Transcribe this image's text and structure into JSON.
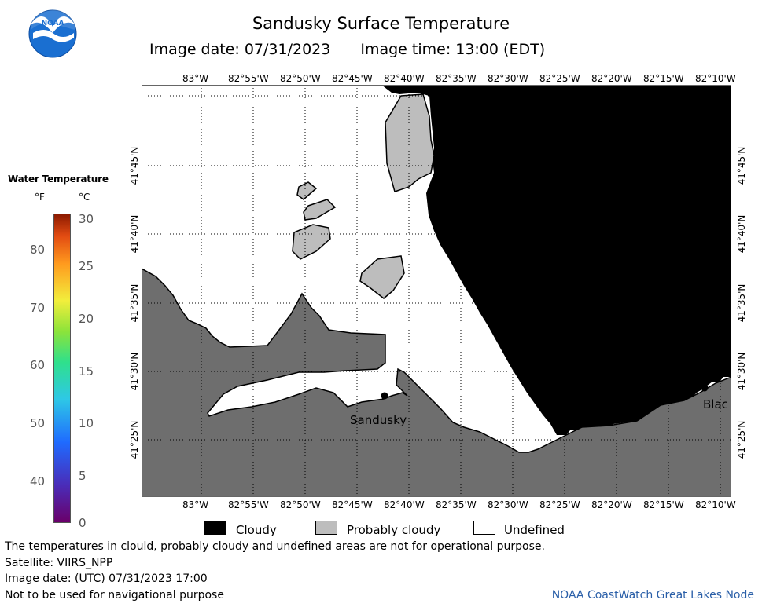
{
  "header": {
    "title": "Sandusky Surface Temperature",
    "image_date": "Image date: 07/31/2023",
    "image_time": "Image time: 13:00 (EDT)"
  },
  "logo": {
    "text": "NOAA",
    "icon": "noaa-logo-icon"
  },
  "legend": {
    "title": "Water Temperature",
    "f_unit": "°F",
    "c_unit": "°C",
    "f_ticks": [
      "80",
      "70",
      "60",
      "50",
      "40"
    ],
    "c_ticks": [
      "30",
      "25",
      "20",
      "15",
      "10",
      "5",
      "0"
    ],
    "c_range": [
      0,
      30
    ]
  },
  "map": {
    "longitude_labels": [
      "83°W",
      "82°55'W",
      "82°50'W",
      "82°45'W",
      "82°40'W",
      "82°35'W",
      "82°30'W",
      "82°25'W",
      "82°20'W",
      "82°15'W",
      "82°10'W"
    ],
    "latitude_labels": [
      "41°45'N",
      "41°40'N",
      "41°35'N",
      "41°30'N",
      "41°25'N"
    ],
    "places": [
      {
        "name": "Sandusky"
      },
      {
        "name": "Blac"
      }
    ],
    "colors": {
      "land": "#6e6e6e",
      "cloudy": "#000000",
      "undefined": "#ffffff",
      "probably_cloudy": "#bdbdbd"
    }
  },
  "key": {
    "cloudy": "Cloudy",
    "probably_cloudy": "Probably cloudy",
    "undefined": "Undefined"
  },
  "footer": {
    "line1": "The temperatures in clould, probably cloudy and undefined areas are not for operational purpose.",
    "line2": "Satellite: VIIRS_NPP",
    "line3": "Image date: (UTC) 07/31/2023  17:00",
    "line4": "Not to be used for navigational purpose",
    "credit": "NOAA CoastWatch Great Lakes Node"
  }
}
